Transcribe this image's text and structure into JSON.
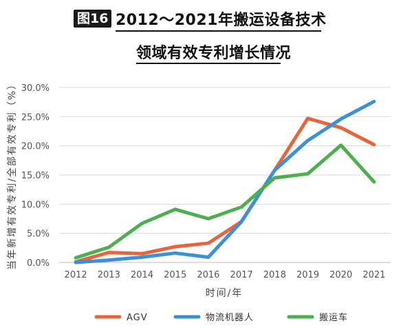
{
  "header": {
    "badge": "图16",
    "title_line1": "2012～2021年搬运设备技术",
    "title_line2": "领域有效专利增长情况"
  },
  "chart_data": {
    "type": "line",
    "x": [
      "2012",
      "2013",
      "2014",
      "2015",
      "2016",
      "2017",
      "2018",
      "2019",
      "2020",
      "2021"
    ],
    "ylabel": "当年新增有效专利/全部有效专利（%）",
    "xlabel": "时间/年",
    "ylim": [
      0,
      30
    ],
    "yticks": [
      "0.0%",
      "5.0%",
      "10.0%",
      "15.0%",
      "20.0%",
      "25.0%",
      "30.0%"
    ],
    "grid": true,
    "legend_position": "bottom",
    "series": [
      {
        "name": "AGV",
        "color": "#e8643c",
        "values": [
          0.1,
          1.7,
          1.5,
          2.7,
          3.3,
          7.0,
          15.8,
          24.7,
          23.1,
          20.2
        ]
      },
      {
        "name": "物流机器人",
        "color": "#3d8fd6",
        "values": [
          0.0,
          0.4,
          0.9,
          1.6,
          0.9,
          7.0,
          15.8,
          20.9,
          24.6,
          27.6
        ]
      },
      {
        "name": "搬运车",
        "color": "#4caf50",
        "values": [
          0.8,
          2.6,
          6.7,
          9.1,
          7.5,
          9.5,
          14.5,
          15.2,
          20.1,
          13.8
        ]
      }
    ]
  }
}
